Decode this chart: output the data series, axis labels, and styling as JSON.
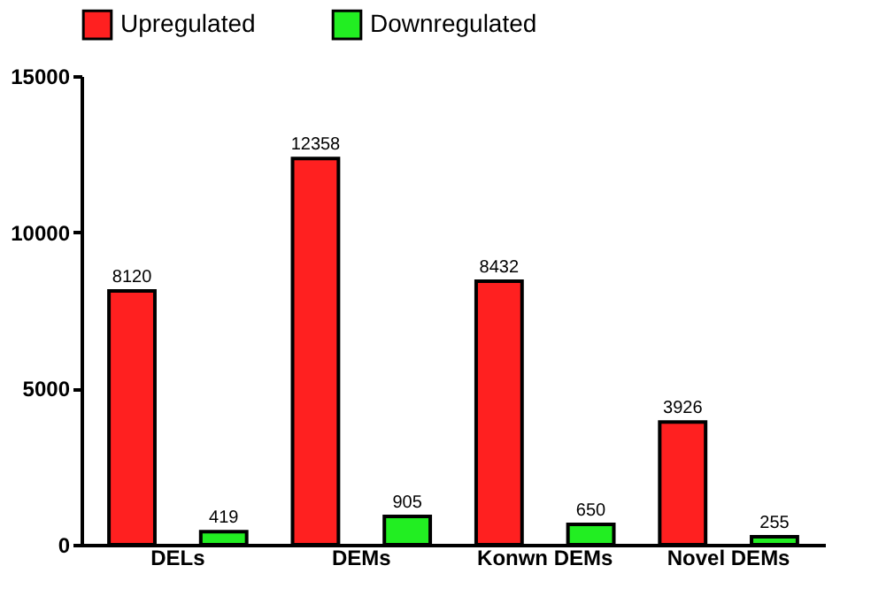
{
  "chart_data": {
    "type": "bar",
    "categories": [
      "DELs",
      "DEMs",
      "Konwn DEMs",
      "Novel DEMs"
    ],
    "series": [
      {
        "name": "Upregulated",
        "color": "#ff2020",
        "values": [
          8120,
          12358,
          8432,
          3926
        ]
      },
      {
        "name": "Downregulated",
        "color": "#22ee22",
        "values": [
          419,
          905,
          650,
          255
        ]
      }
    ],
    "ylim": [
      0,
      15000
    ],
    "yticks": [
      0,
      5000,
      10000,
      15000
    ],
    "grid": false,
    "legend": "top",
    "data_labels": true
  }
}
